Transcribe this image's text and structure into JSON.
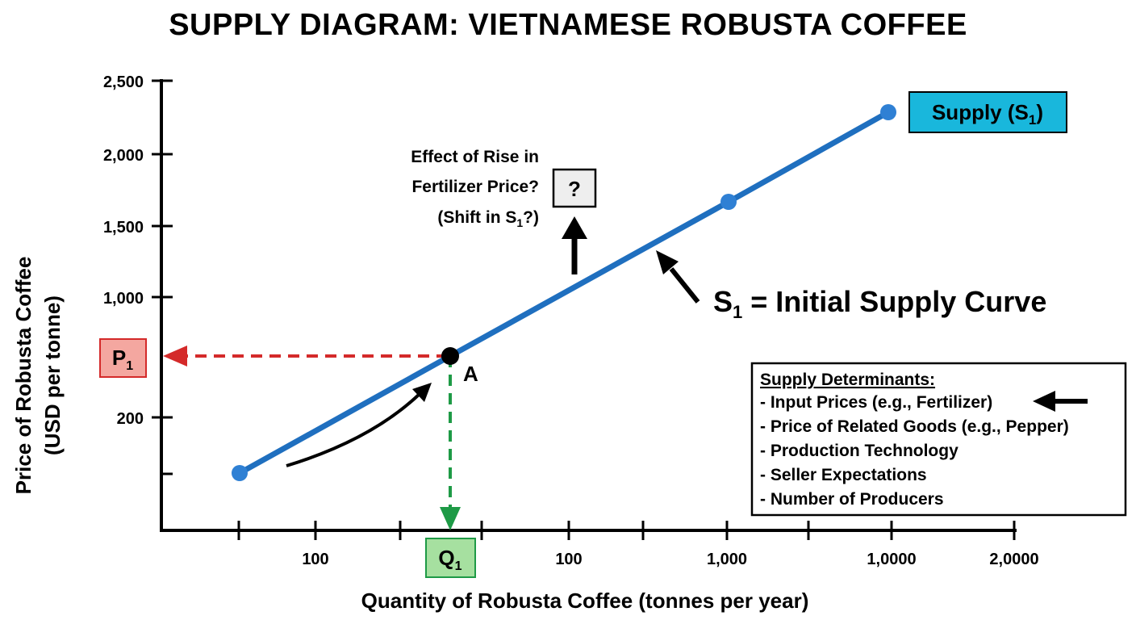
{
  "title": "SUPPLY DIAGRAM: VIETNAMESE ROBUSTA COFFEE",
  "colors": {
    "supply_line": "#1f6fbf",
    "supply_point": "#2f80d4",
    "price_guide": "#d42a2a",
    "price_box_fill": "#f4a7a0",
    "quantity_guide": "#1e9a46",
    "quantity_box_fill": "#a6e0a0",
    "supply_label_fill": "#19b7dc",
    "question_box_fill": "#eeeeee"
  },
  "chart_data": {
    "type": "line",
    "xlabel": "Quantity of Robusta Coffee (tonnes per year)",
    "ylabel_line1": "Price of Robusta Coffee",
    "ylabel_line2": "(USD per tonne)",
    "y_tick_labels": [
      "2,500",
      "2,000",
      "1,500",
      "1,000",
      "200",
      ""
    ],
    "x_tick_labels": [
      "100",
      "100",
      "1,000",
      "1,0000",
      "2,0000"
    ],
    "series": [
      {
        "name": "Supply (S1)",
        "points": [
          {
            "x_label": "start",
            "y": "below 200"
          },
          {
            "x_label": "Q1",
            "y": "P1",
            "label": "A"
          },
          {
            "x_label": "1,000",
            "y": "≈1,670"
          },
          {
            "x_label": "1,0000",
            "y": "≈2,280"
          }
        ]
      }
    ],
    "equilibrium": {
      "point_label": "A",
      "price_label": "P",
      "price_sub": "1",
      "quantity_label": "Q",
      "quantity_sub": "1"
    }
  },
  "labels": {
    "supply_box_main": "Supply (S",
    "supply_box_sub": "1",
    "supply_box_end": ")",
    "question_mark": "?",
    "effect_line1": "Effect of Rise in",
    "effect_line2": "Fertilizer Price?",
    "effect_line3_main": "(Shift in S",
    "effect_line3_sub": "1",
    "effect_line3_end": "?)",
    "curve_label_main": "S",
    "curve_label_sub": "1",
    "curve_label_end": " = Initial Supply Curve",
    "point_a": "A"
  },
  "determinants": {
    "heading": "Supply Determinants:",
    "items": [
      "- Input Prices (e.g., Fertilizer)",
      "- Price of Related Goods (e.g., Pepper)",
      "- Production Technology",
      "- Seller Expectations",
      "- Number of Producers"
    ]
  }
}
